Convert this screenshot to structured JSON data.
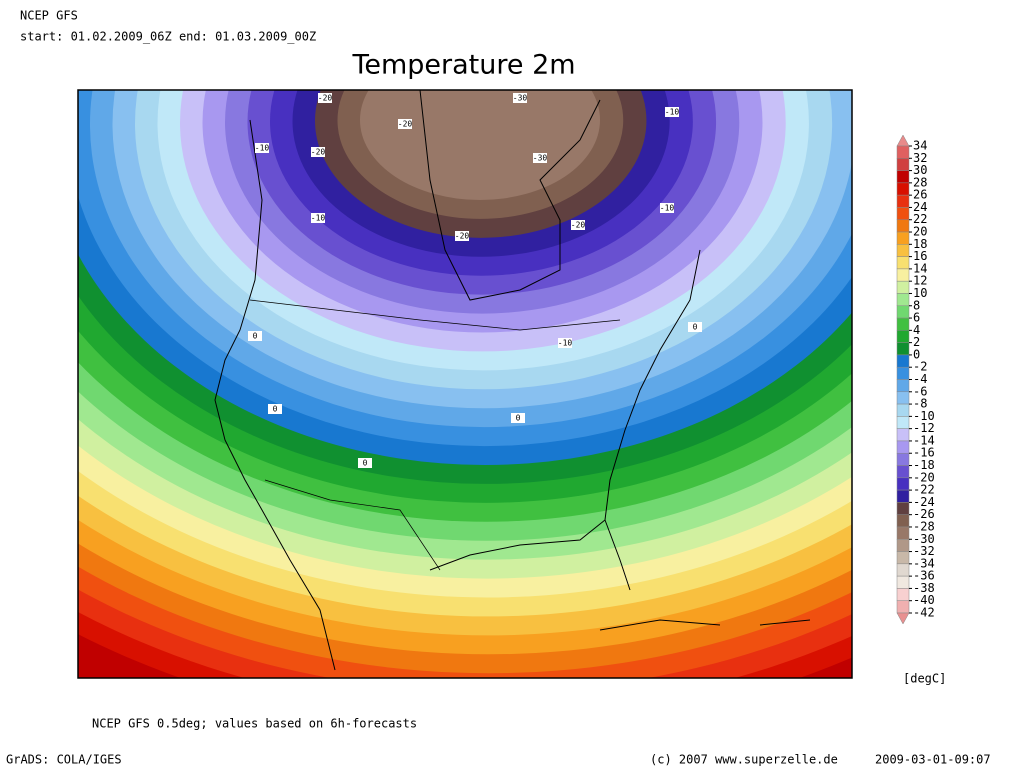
{
  "header": {
    "model": "NCEP GFS",
    "period": "start: 01.02.2009_06Z end: 01.03.2009_00Z"
  },
  "title": "Temperature 2m",
  "colorbar": {
    "levels": [
      34,
      32,
      30,
      28,
      26,
      24,
      22,
      20,
      18,
      16,
      14,
      12,
      10,
      8,
      6,
      4,
      2,
      0,
      -2,
      -4,
      -6,
      -8,
      -10,
      -12,
      -14,
      -16,
      -18,
      -20,
      -22,
      -24,
      -26,
      -28,
      -30,
      -32,
      -34,
      -36,
      -38,
      -40,
      -42
    ],
    "colors": [
      "#e88a8a",
      "#e06060",
      "#d04040",
      "#c00000",
      "#d81000",
      "#e83010",
      "#f05010",
      "#f07810",
      "#f8a020",
      "#f8c040",
      "#f8e070",
      "#f8f0a0",
      "#d0f0a0",
      "#a0e890",
      "#70d870",
      "#40c040",
      "#20a830",
      "#109030",
      "#1878d0",
      "#3890e0",
      "#60a8e8",
      "#88c0f0",
      "#a8d8f0",
      "#c0e8f8",
      "#c8c0f8",
      "#a898f0",
      "#8878e0",
      "#6850d0",
      "#4830c0",
      "#3020a0",
      "#604040",
      "#806050",
      "#987868",
      "#b09888",
      "#c8b8a8",
      "#e0d8d0",
      "#f0e8e0",
      "#f8d0d0",
      "#f0b0b0",
      "#e89090"
    ],
    "unit": "[degC]"
  },
  "contour_labels": [
    "-20",
    "-30",
    "-10",
    "-20",
    "-10",
    "-20",
    "-30",
    "-20",
    "-20",
    "-10",
    "-10",
    "0",
    "-10",
    "0",
    "0",
    "0",
    "0"
  ],
  "footer": {
    "note": "NCEP GFS 0.5deg; values based on 6h-forecasts",
    "software": "GrADS: COLA/IGES",
    "copyright": "(c) 2007 www.superzelle.de",
    "timestamp": "2009-03-01-09:07"
  }
}
